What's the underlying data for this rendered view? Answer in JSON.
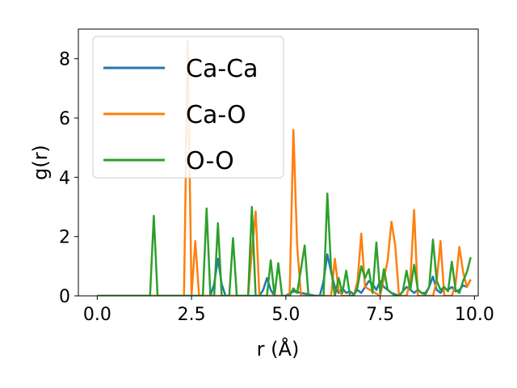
{
  "chart_data": {
    "type": "line",
    "xlabel": "r (Å)",
    "ylabel": "g(r)",
    "xlim": [
      -0.5,
      10.1
    ],
    "ylim": [
      0,
      9
    ],
    "xticks": [
      0.0,
      2.5,
      5.0,
      7.5,
      10.0
    ],
    "xtick_labels": [
      "0.0",
      "2.5",
      "5.0",
      "7.5",
      "10.0"
    ],
    "yticks": [
      0,
      2,
      4,
      6,
      8
    ],
    "ytick_labels": [
      "0",
      "2",
      "4",
      "6",
      "8"
    ],
    "grid": false,
    "legend_position": "top-left",
    "series": [
      {
        "name": "Ca-Ca",
        "color": "#1f77b4",
        "x": [
          0.0,
          3.0,
          3.1,
          3.2,
          3.3,
          3.4,
          4.3,
          4.4,
          4.5,
          4.6,
          4.7,
          4.8,
          5.0,
          5.2,
          5.8,
          5.9,
          6.0,
          6.1,
          6.2,
          6.3,
          6.4,
          6.5,
          6.6,
          6.7,
          6.8,
          6.9,
          7.0,
          7.1,
          7.2,
          7.3,
          7.4,
          7.5,
          7.6,
          7.7,
          7.8,
          7.9,
          8.0,
          8.1,
          8.2,
          8.3,
          8.4,
          8.5,
          8.6,
          8.7,
          8.8,
          8.9,
          9.0,
          9.1,
          9.2,
          9.3,
          9.4,
          9.5,
          9.6,
          9.7,
          9.8,
          9.9
        ],
        "y": [
          0,
          0,
          0.4,
          1.25,
          0.4,
          0,
          0,
          0.2,
          0.6,
          0.2,
          0,
          0,
          0,
          0.15,
          0,
          0,
          0.5,
          1.4,
          0.8,
          0.3,
          0.1,
          0.25,
          0.1,
          0.15,
          0.05,
          0.2,
          0.1,
          0.3,
          0.5,
          0.4,
          0.2,
          0.5,
          0.3,
          0.2,
          0.1,
          0.05,
          0,
          0.15,
          0.3,
          0.2,
          0.1,
          0.2,
          0.1,
          0.05,
          0.3,
          0.65,
          0.2,
          0.1,
          0.25,
          0.2,
          0.3,
          0.15,
          0.2,
          0.35,
          0.3,
          0.55
        ]
      },
      {
        "name": "Ca-O",
        "color": "#ff7f0e",
        "x": [
          0.0,
          2.3,
          2.4,
          2.5,
          2.6,
          2.7,
          2.8,
          4.0,
          4.1,
          4.2,
          4.3,
          5.1,
          5.2,
          5.3,
          5.4,
          6.2,
          6.3,
          6.4,
          6.5,
          6.8,
          6.9,
          7.0,
          7.1,
          7.5,
          7.6,
          7.7,
          7.8,
          7.9,
          8.0,
          8.2,
          8.3,
          8.4,
          8.5,
          8.9,
          9.0,
          9.1,
          9.2,
          9.4,
          9.5,
          9.6,
          9.7,
          9.8,
          9.9
        ],
        "y": [
          0,
          0,
          8.6,
          0,
          1.85,
          0,
          0,
          0,
          1.5,
          2.85,
          0,
          0,
          5.6,
          1.7,
          0,
          0,
          1.25,
          0.2,
          0,
          0,
          0.5,
          2.1,
          0.3,
          0,
          0.6,
          1.2,
          2.5,
          1.7,
          0,
          0,
          0.5,
          2.9,
          0,
          0,
          0.5,
          1.85,
          0,
          0,
          0.4,
          1.65,
          0.8,
          0.3,
          0.55
        ]
      },
      {
        "name": "O-O",
        "color": "#2ca02c",
        "x": [
          0.0,
          1.4,
          1.5,
          1.6,
          2.8,
          2.9,
          3.0,
          3.1,
          3.2,
          3.3,
          3.4,
          3.5,
          3.6,
          3.7,
          4.0,
          4.1,
          4.2,
          4.5,
          4.6,
          4.7,
          4.8,
          4.9,
          5.1,
          5.2,
          5.3,
          5.4,
          5.5,
          5.6,
          5.9,
          6.0,
          6.1,
          6.2,
          6.3,
          6.4,
          6.5,
          6.6,
          6.7,
          6.8,
          6.9,
          7.0,
          7.1,
          7.2,
          7.3,
          7.4,
          7.5,
          7.6,
          7.7,
          7.8,
          7.9,
          8.0,
          8.1,
          8.2,
          8.3,
          8.4,
          8.5,
          8.6,
          8.7,
          8.8,
          8.9,
          9.0,
          9.1,
          9.2,
          9.3,
          9.4,
          9.5,
          9.6,
          9.7,
          9.8,
          9.9
        ],
        "y": [
          0,
          0,
          2.7,
          0,
          0,
          2.95,
          0,
          0,
          2.45,
          0,
          0,
          0,
          1.95,
          0,
          0,
          3.0,
          0,
          0,
          1.2,
          0,
          1.1,
          0,
          0,
          0.25,
          0.1,
          0.9,
          1.7,
          0,
          0,
          0,
          3.45,
          0.9,
          0,
          0.6,
          0.1,
          0.85,
          0,
          0,
          0.3,
          1.0,
          0.6,
          0.9,
          0.1,
          1.8,
          0.1,
          0.9,
          0.2,
          0.1,
          0,
          0,
          0.15,
          0.85,
          0.2,
          1.05,
          0.2,
          0.1,
          0.1,
          0.3,
          1.9,
          0.5,
          0.2,
          0.3,
          0.15,
          1.15,
          0.2,
          0.1,
          0.5,
          0.8,
          1.3
        ]
      }
    ]
  }
}
